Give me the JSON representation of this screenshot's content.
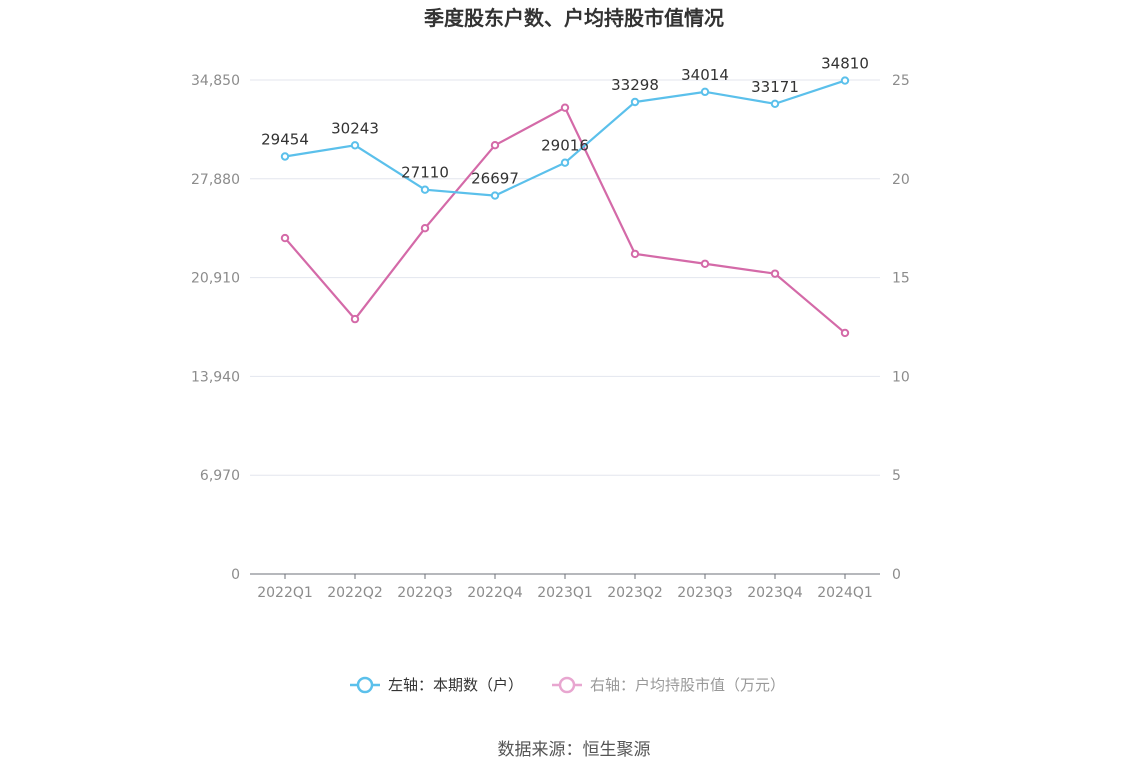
{
  "chart_data": {
    "type": "line",
    "title": "季度股东户数、户均持股市值情况",
    "categories": [
      "2022Q1",
      "2022Q2",
      "2022Q3",
      "2022Q4",
      "2023Q1",
      "2023Q2",
      "2023Q3",
      "2023Q4",
      "2024Q1"
    ],
    "left_axis": {
      "ticks": [
        "0",
        "6,970",
        "13,940",
        "20,910",
        "27,880",
        "34,850"
      ],
      "ylim": [
        0,
        34850
      ]
    },
    "right_axis": {
      "ticks": [
        "0",
        "5",
        "10",
        "15",
        "20",
        "25"
      ],
      "ylim": [
        0,
        25
      ]
    },
    "series": [
      {
        "name": "左轴：本期数（户）",
        "axis": "left",
        "color": "#5bc0eb",
        "values": [
          29454,
          30243,
          27110,
          26697,
          29016,
          33298,
          34014,
          33171,
          34810
        ],
        "labels": [
          "29454",
          "30243",
          "27110",
          "26697",
          "29016",
          "33298",
          "34014",
          "33171",
          "34810"
        ]
      },
      {
        "name": "右轴：户均持股市值（万元）",
        "axis": "right",
        "color": "#d46aa8",
        "values": [
          17.0,
          12.9,
          17.5,
          21.7,
          23.6,
          16.2,
          15.7,
          15.2,
          12.2
        ]
      }
    ],
    "grid": true,
    "legend_position": "bottom"
  },
  "source": "数据来源：恒生聚源"
}
